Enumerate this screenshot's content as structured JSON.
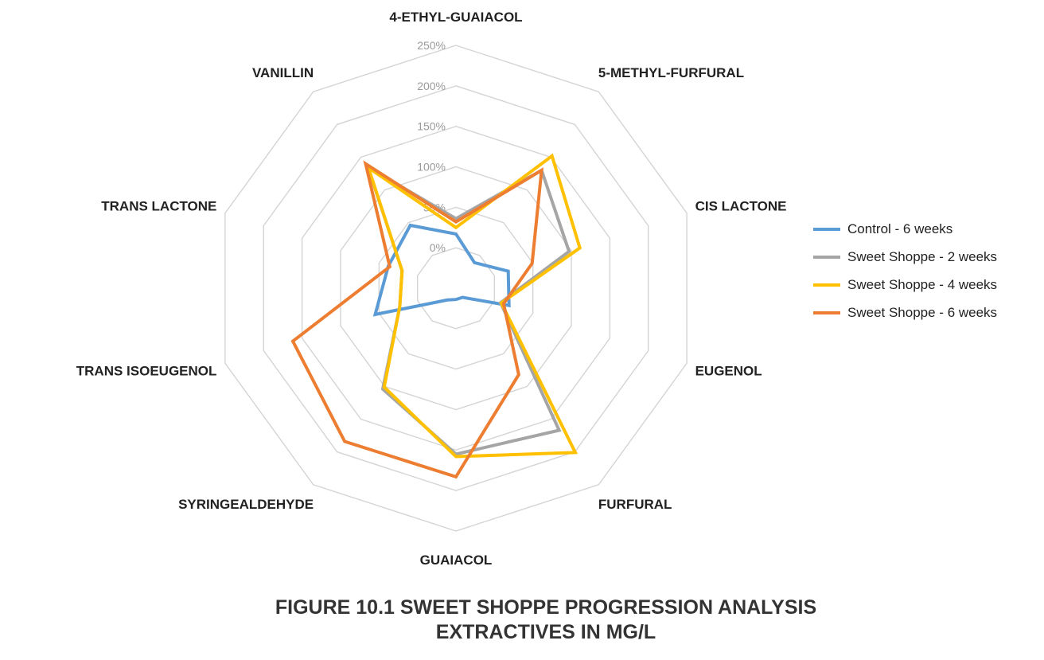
{
  "chart_data": {
    "type": "radar",
    "categories": [
      "4-ETHYL-GUAIACOL",
      "5-METHYL-FURFURAL",
      "CIS LACTONE",
      "EUGENOL",
      "FURFURAL",
      "GUAIACOL",
      "SYRINGEALDEHYDE",
      "TRANS ISOEUGENOL",
      "TRANS LACTONE",
      "VANILLIN"
    ],
    "tick_labels": [
      "0%",
      "50%",
      "100%",
      "150%",
      "200%",
      "250%"
    ],
    "rlim": [
      -50,
      250
    ],
    "tick_values": [
      0,
      50,
      100,
      150,
      200,
      250
    ],
    "series": [
      {
        "name": "Control - 6 weeks",
        "color": "#5b9bd5",
        "values": [
          17,
          -11,
          18,
          19,
          -36,
          -36,
          -32,
          55,
          38,
          46
        ]
      },
      {
        "name": "Sweet Shoppe - 2 weeks",
        "color": "#a5a5a5",
        "values": [
          36,
          130,
          97,
          8,
          167,
          155,
          104,
          23,
          20,
          135
        ]
      },
      {
        "name": "Sweet Shoppe - 4 weeks",
        "color": "#ffc000",
        "values": [
          25,
          152,
          111,
          9,
          201,
          158,
          101,
          23,
          20,
          134
        ]
      },
      {
        "name": "Sweet Shoppe - 6 weeks",
        "color": "#ed7d31",
        "values": [
          32,
          130,
          49,
          12,
          82,
          183,
          184,
          162,
          36,
          140
        ]
      }
    ]
  },
  "caption": {
    "line1": "FIGURE 10.1  SWEET SHOPPE PROGRESSION ANALYSIS",
    "line2": "EXTRACTIVES IN MG/L"
  }
}
